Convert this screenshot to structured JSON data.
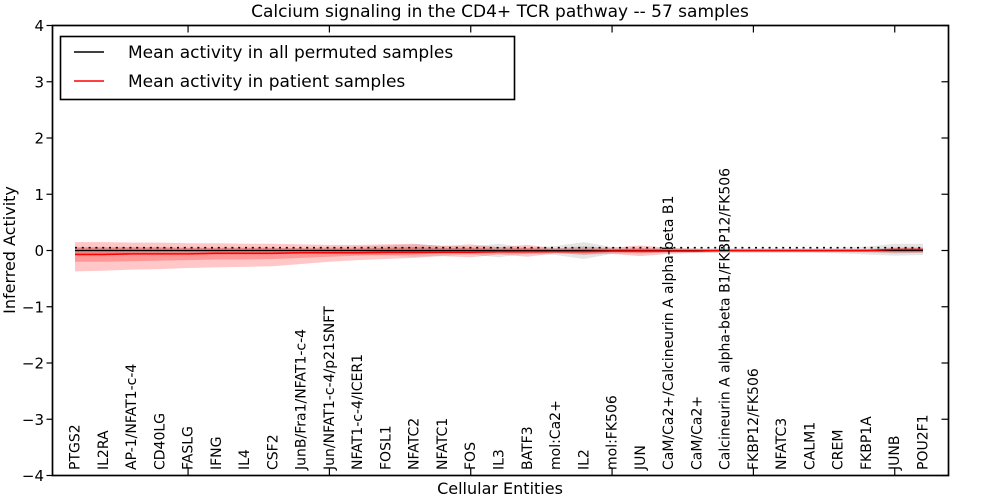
{
  "chart_data": {
    "type": "line",
    "title": "Calcium signaling in the CD4+ TCR pathway -- 57 samples",
    "xlabel": "Cellular Entities",
    "ylabel": "Inferred Activity",
    "ylim": [
      -4,
      4
    ],
    "grid": false,
    "legend_position": "upper-left",
    "y_ticks": [
      -4,
      -3,
      -2,
      -1,
      0,
      1,
      2,
      3,
      4
    ],
    "x_major_ticks": [
      5,
      10,
      15,
      20,
      25,
      30
    ],
    "categories": [
      "PTGS2",
      "IL2RA",
      "AP-1/NFAT1-c-4",
      "CD40LG",
      "FASLG",
      "IFNG",
      "IL4",
      "CSF2",
      "JunB/Fra1/NFAT1-c-4",
      "Jun/NFAT1-c-4/p21SNFT",
      "NFAT1-c-4/ICER1",
      "FOSL1",
      "NFATC2",
      "NFATC1",
      "FOS",
      "IL3",
      "BATF3",
      "mol:Ca2+",
      "IL2",
      "mol:FK506",
      "JUN",
      "CaM/Ca2+/Calcineurin A alpha-beta B1",
      "CaM/Ca2+",
      "Calcineurin A alpha-beta B1/FKBP12/FK506",
      "FKBP12/FK506",
      "NFATC3",
      "CALM1",
      "CREM",
      "FKBP1A",
      "JUNB",
      "POU2F1"
    ],
    "series": [
      {
        "name": "Mean activity in all permuted samples",
        "color": "#000000",
        "width": 1.2,
        "values": [
          0,
          0,
          0,
          0,
          0,
          0,
          0,
          0,
          0,
          0,
          0,
          0,
          0,
          0,
          0,
          0,
          0,
          0,
          0,
          0,
          0,
          0,
          0,
          0,
          0,
          0,
          0,
          0,
          0,
          0,
          0
        ]
      },
      {
        "name": "Mean activity in patient samples",
        "color": "#ff0000",
        "width": 1.6,
        "values": [
          -0.07,
          -0.07,
          -0.06,
          -0.06,
          -0.06,
          -0.05,
          -0.05,
          -0.05,
          -0.04,
          -0.04,
          -0.04,
          -0.03,
          -0.03,
          -0.03,
          -0.03,
          -0.02,
          -0.02,
          -0.02,
          -0.02,
          -0.01,
          -0.01,
          -0.01,
          -0.01,
          0,
          0,
          0,
          0,
          0,
          0,
          0.02,
          0.02
        ]
      }
    ],
    "reference_line": {
      "style": "dotted",
      "color": "#000000",
      "value": 0.05
    },
    "bands": [
      {
        "name": "permuted-outer",
        "color": "#000000",
        "opacity": 0.1,
        "upper": [
          0.05,
          0.05,
          0.05,
          0.05,
          0.05,
          0.05,
          0.05,
          0.05,
          0.05,
          0.06,
          0.07,
          0.09,
          0.11,
          0.09,
          0.07,
          0.12,
          0.05,
          0.08,
          0.15,
          0.06,
          0.05,
          0.04,
          0.04,
          0.04,
          0.04,
          0.04,
          0.04,
          0.05,
          0.07,
          0.12,
          0.12
        ],
        "lower": [
          -0.05,
          -0.05,
          -0.05,
          -0.05,
          -0.05,
          -0.05,
          -0.05,
          -0.05,
          -0.05,
          -0.06,
          -0.07,
          -0.09,
          -0.11,
          -0.09,
          -0.07,
          -0.12,
          -0.05,
          -0.08,
          -0.15,
          -0.06,
          -0.05,
          -0.04,
          -0.04,
          -0.04,
          -0.04,
          -0.04,
          -0.04,
          -0.05,
          -0.07,
          -0.09,
          -0.08
        ]
      },
      {
        "name": "permuted-inner",
        "color": "#000000",
        "opacity": 0.1,
        "upper": [
          0.02,
          0.02,
          0.02,
          0.02,
          0.02,
          0.02,
          0.02,
          0.02,
          0.02,
          0.03,
          0.03,
          0.05,
          0.06,
          0.05,
          0.04,
          0.06,
          0.03,
          0.04,
          0.08,
          0.03,
          0.02,
          0.02,
          0.02,
          0.02,
          0.02,
          0.02,
          0.02,
          0.02,
          0.03,
          0.06,
          0.06
        ],
        "lower": [
          -0.02,
          -0.02,
          -0.02,
          -0.02,
          -0.02,
          -0.02,
          -0.02,
          -0.02,
          -0.02,
          -0.03,
          -0.03,
          -0.05,
          -0.06,
          -0.05,
          -0.04,
          -0.06,
          -0.03,
          -0.04,
          -0.08,
          -0.03,
          -0.02,
          -0.02,
          -0.02,
          -0.02,
          -0.02,
          -0.02,
          -0.02,
          -0.02,
          -0.03,
          -0.05,
          -0.04
        ]
      },
      {
        "name": "patient-outer",
        "color": "#ff0000",
        "opacity": 0.22,
        "upper": [
          0.15,
          0.15,
          0.14,
          0.14,
          0.13,
          0.13,
          0.12,
          0.12,
          0.11,
          0.1,
          0.1,
          0.11,
          0.12,
          0.08,
          0.11,
          0.06,
          0.1,
          0.04,
          0.06,
          0.05,
          0.09,
          0.05,
          0.03,
          0.02,
          0.02,
          0.02,
          0.02,
          0.02,
          0.02,
          0.03,
          0.03
        ],
        "lower": [
          -0.37,
          -0.36,
          -0.34,
          -0.33,
          -0.31,
          -0.3,
          -0.29,
          -0.28,
          -0.24,
          -0.2,
          -0.17,
          -0.15,
          -0.13,
          -0.1,
          -0.12,
          -0.07,
          -0.11,
          -0.05,
          -0.07,
          -0.06,
          -0.1,
          -0.06,
          -0.04,
          -0.03,
          -0.03,
          -0.03,
          -0.03,
          -0.03,
          -0.03,
          -0.04,
          -0.04
        ]
      },
      {
        "name": "patient-inner",
        "color": "#ff0000",
        "opacity": 0.24,
        "upper": [
          0.06,
          0.06,
          0.06,
          0.06,
          0.05,
          0.05,
          0.05,
          0.05,
          0.04,
          0.04,
          0.04,
          0.05,
          0.06,
          0.04,
          0.05,
          0.03,
          0.05,
          0.02,
          0.03,
          0.02,
          0.04,
          0.02,
          0.01,
          0.01,
          0.01,
          0.01,
          0.01,
          0.01,
          0.01,
          0.01,
          0.01
        ],
        "lower": [
          -0.2,
          -0.2,
          -0.19,
          -0.18,
          -0.17,
          -0.16,
          -0.16,
          -0.15,
          -0.13,
          -0.11,
          -0.09,
          -0.08,
          -0.07,
          -0.05,
          -0.06,
          -0.04,
          -0.06,
          -0.03,
          -0.04,
          -0.03,
          -0.05,
          -0.03,
          -0.02,
          -0.02,
          -0.02,
          -0.02,
          -0.02,
          -0.02,
          -0.02,
          -0.02,
          -0.02
        ]
      }
    ]
  }
}
